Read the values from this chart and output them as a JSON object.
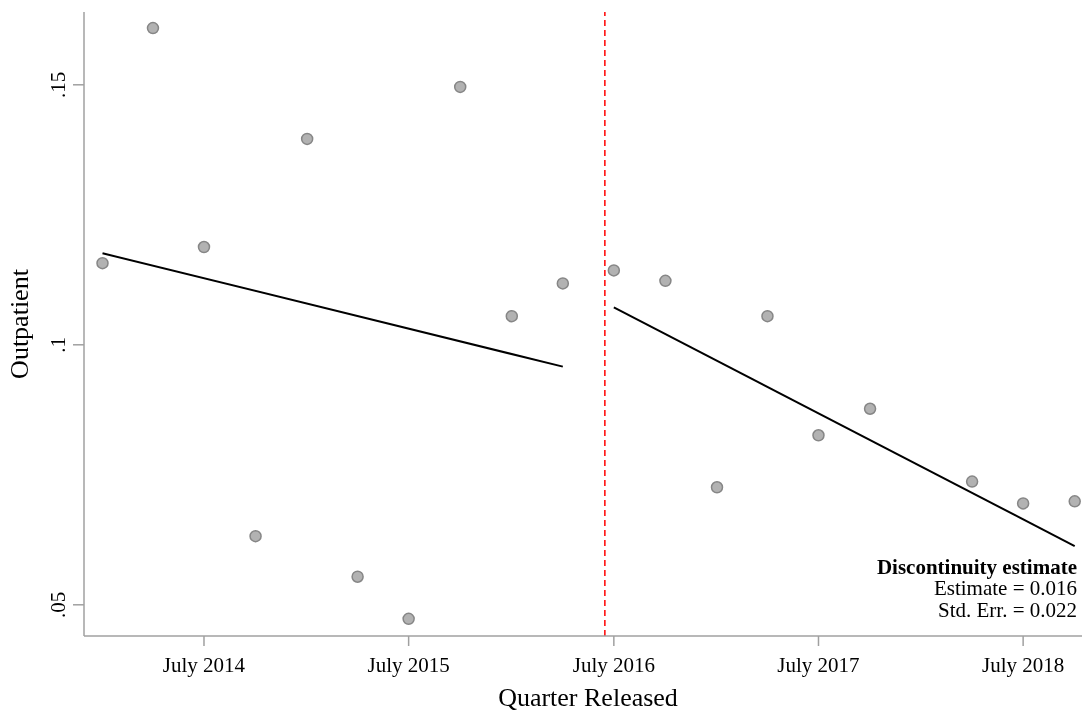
{
  "chart_data": {
    "type": "scatter",
    "xlabel": "Quarter Released",
    "ylabel": "Outpatient",
    "x": [
      "2014-01",
      "2014-04",
      "2014-07",
      "2014-10",
      "2015-01",
      "2015-04",
      "2015-07",
      "2015-10",
      "2016-01",
      "2016-04",
      "2016-07",
      "2016-10",
      "2017-01",
      "2017-04",
      "2017-07",
      "2017-10",
      "2018-04",
      "2018-07",
      "2018-10"
    ],
    "series": [
      {
        "type": "scatter",
        "color": "#b2b2b2",
        "values": [
          0.1157,
          0.1609,
          0.1188,
          0.0632,
          0.1396,
          0.0554,
          0.0473,
          0.1496,
          0.1055,
          0.1118,
          0.1143,
          0.1123,
          0.0726,
          0.1055,
          0.0826,
          0.0877,
          0.0737,
          0.0695,
          0.0699
        ]
      },
      {
        "type": "line",
        "color": "#000000",
        "marker": "none",
        "x": [
          "2014-01",
          "2016-04"
        ],
        "values": [
          0.1176,
          0.0958
        ]
      },
      {
        "type": "line",
        "color": "#000000",
        "marker": "none",
        "x": [
          "2016-07",
          "2018-10"
        ],
        "values": [
          0.1072,
          0.0613
        ]
      }
    ],
    "marker": "circle",
    "line_style": "solid",
    "xlim": [
      "2013-11-29",
      "2018-10-14"
    ],
    "xticks": [
      {
        "value": "2014-07",
        "label": "July 2014"
      },
      {
        "value": "2015-07",
        "label": "July 2015"
      },
      {
        "value": "2016-07",
        "label": "July 2016"
      },
      {
        "value": "2017-07",
        "label": "July 2017"
      },
      {
        "value": "2018-07",
        "label": "July 2018"
      }
    ],
    "ylim": [
      0.044,
      0.164
    ],
    "yticks": [
      {
        "value": 0.05,
        "label": ".05"
      },
      {
        "value": 0.1,
        "label": ".1"
      },
      {
        "value": 0.15,
        "label": ".15"
      }
    ],
    "ref_lines": [
      {
        "axis": "x",
        "value": "2016-06-15",
        "color": "#ff0000",
        "line_style": "dashed"
      }
    ],
    "annotations": [
      "Discontinuity estimate",
      "Estimate = 0.016",
      "Std. Err. = 0.022"
    ]
  }
}
